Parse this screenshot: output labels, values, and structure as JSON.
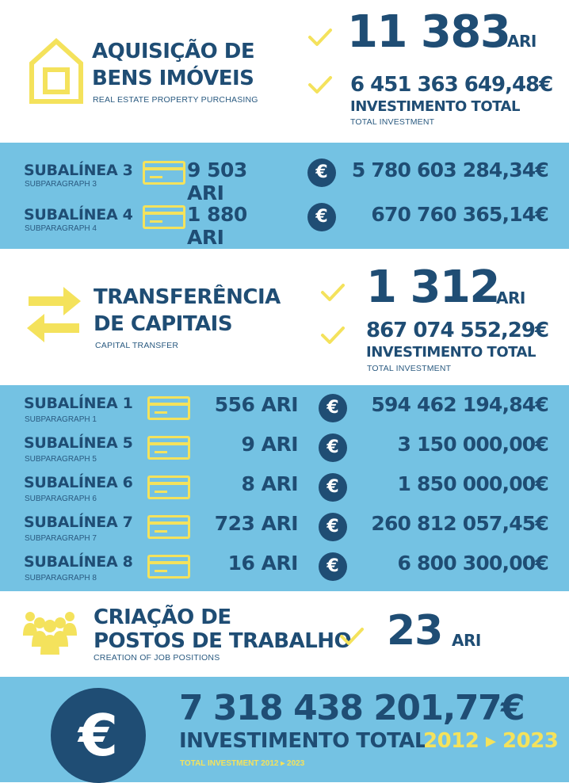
{
  "colors": {
    "navy": "#1f4d74",
    "light_blue": "#74c2e3",
    "yellow": "#f4e25c",
    "white": "#ffffff"
  },
  "section_acquisition": {
    "icon": "house-icon",
    "title_line1": "AQUISIÇÃO DE",
    "title_line2": "BENS IMÓVEIS",
    "subtitle": "REAL ESTATE PROPERTY PURCHASING",
    "ari_count": "11 383",
    "ari_unit": "ARI",
    "investment_value": "6 451 363 649,48€",
    "investment_label": "INVESTIMENTO TOTAL",
    "investment_sublabel": "TOTAL INVESTMENT"
  },
  "acquisition_rows": [
    {
      "label": "SUBALÍNEA 3",
      "sub": "SUBPARAGRAPH 3",
      "ari": "9 503 ARI",
      "amount": "5 780 603 284,34€"
    },
    {
      "label": "SUBALÍNEA 4",
      "sub": "SUBPARAGRAPH 4",
      "ari": "1 880 ARI",
      "amount": "670 760 365,14€"
    }
  ],
  "section_transfer": {
    "icon": "transfer-arrows-icon",
    "title_line1": "TRANSFERÊNCIA",
    "title_line2": "DE CAPITAIS",
    "subtitle": "CAPITAL TRANSFER",
    "ari_count": "1 312",
    "ari_unit": "ARI",
    "investment_value": "867 074 552,29€",
    "investment_label": "INVESTIMENTO TOTAL",
    "investment_sublabel": "TOTAL INVESTMENT"
  },
  "transfer_rows": [
    {
      "label": "SUBALÍNEA 1",
      "sub": "SUBPARAGRAPH 1",
      "ari": "556 ARI",
      "amount": "594 462 194,84€"
    },
    {
      "label": "SUBALÍNEA 5",
      "sub": "SUBPARAGRAPH 5",
      "ari": "9 ARI",
      "amount": "3 150 000,00€"
    },
    {
      "label": "SUBALÍNEA 6",
      "sub": "SUBPARAGRAPH 6",
      "ari": "8 ARI",
      "amount": "1 850 000,00€"
    },
    {
      "label": "SUBALÍNEA 7",
      "sub": "SUBPARAGRAPH 7",
      "ari": "723 ARI",
      "amount": "260 812 057,45€"
    },
    {
      "label": "SUBALÍNEA 8",
      "sub": "SUBPARAGRAPH 8",
      "ari": "16 ARI",
      "amount": "6 800 300,00€"
    }
  ],
  "section_jobs": {
    "icon": "people-group-icon",
    "title_line1": "CRIAÇÃO DE",
    "title_line2": "POSTOS DE TRABALHO",
    "subtitle": "CREATION OF JOB POSITIONS",
    "ari_count": "23",
    "ari_unit": "ARI"
  },
  "total": {
    "icon": "euro-icon",
    "value": "7 318 438 201,77€",
    "label": "INVESTIMENTO TOTAL",
    "years": "2012 ▸ 2023",
    "sublabel": "TOTAL INVESTMENT 2012 ▸ 2023"
  }
}
